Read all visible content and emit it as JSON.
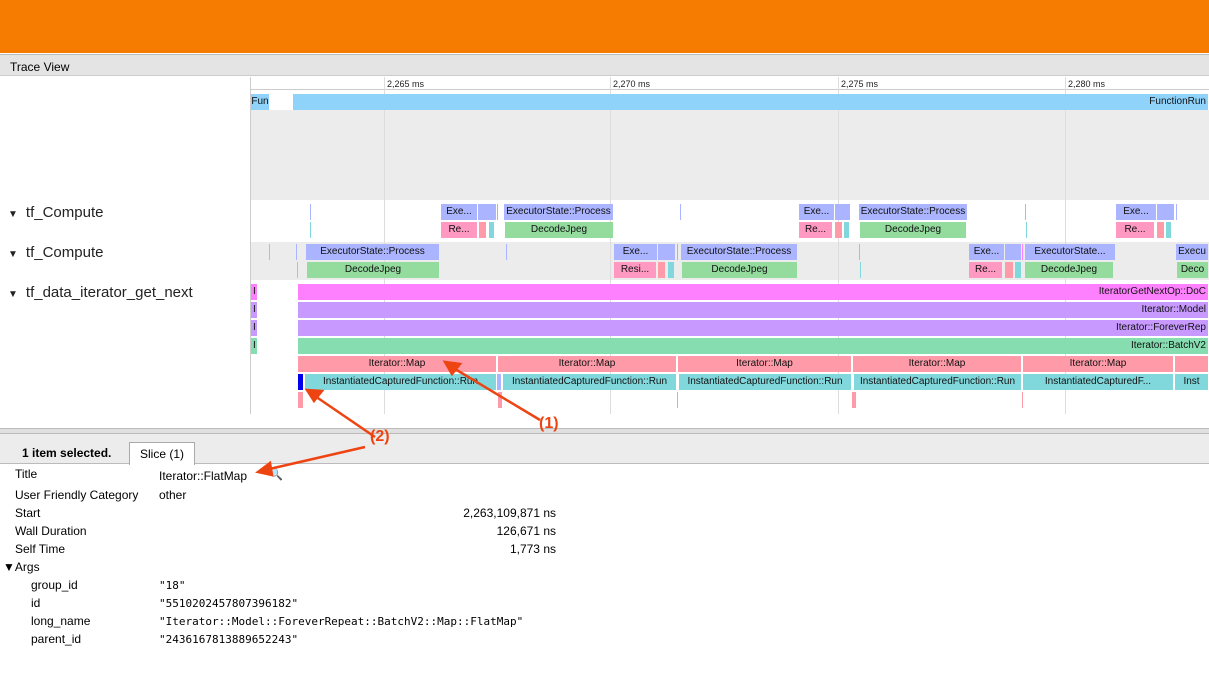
{
  "window": {
    "title": "Trace View"
  },
  "timeline": {
    "ticks": [
      "2,265 ms",
      "2,270 ms",
      "2,275 ms",
      "2,280 ms"
    ]
  },
  "tracks": [
    {
      "label": "tf_Compute",
      "expanded": true
    },
    {
      "label": "tf_Compute",
      "expanded": true
    },
    {
      "label": "tf_data_iterator_get_next",
      "expanded": true
    }
  ],
  "slice_labels": {
    "fun": "Fun",
    "function_run": "FunctionRun",
    "exe": "Exe...",
    "process": "ExecutorState::Process",
    "process_short": "ExecutorState...",
    "execu": "Execu",
    "re": "Re...",
    "resi": "Resi...",
    "decode": "DecodeJpeg",
    "deco": "Deco",
    "i": "I",
    "getnext": "IteratorGetNextOp::DoC",
    "model": "Iterator::Model",
    "forever": "Iterator::ForeverRep",
    "batch": "Iterator::BatchV2",
    "map": "Iterator::Map",
    "icf": "InstantiatedCapturedFunction::Run",
    "icf_short": "InstantiatedCapturedF...",
    "inst": "Inst"
  },
  "annotations": [
    "(1)",
    "(2)"
  ],
  "selection": {
    "count_label": "1 item selected.",
    "tab": "Slice (1)"
  },
  "details": {
    "title_label": "Title",
    "title": "Iterator::FlatMap",
    "search_icon": "magnifier-icon",
    "category_label": "User Friendly Category",
    "category": "other",
    "start_label": "Start",
    "start": "2,263,109,871 ns",
    "wall_label": "Wall Duration",
    "wall": "126,671 ns",
    "self_label": "Self Time",
    "self": "1,773 ns",
    "args_label": "Args",
    "args": [
      {
        "k": "group_id",
        "v": "\"18\""
      },
      {
        "k": "id",
        "v": "\"5510202457807396182\""
      },
      {
        "k": "long_name",
        "v": "\"Iterator::Model::ForeverRepeat::BatchV2::Map::FlatMap\""
      },
      {
        "k": "parent_id",
        "v": "\"2436167813889652243\""
      }
    ]
  },
  "colors": {
    "header": "#f57c00",
    "exec": "#aab4ff",
    "decode": "#93dc9e",
    "resize": "#ff99c2",
    "map": "#ff9aa8",
    "icf": "#80d8dc",
    "getnext": "#ff80ff",
    "model": "#c899ff",
    "batch": "#86ddb0",
    "selected": "#0000ee",
    "annotation": "#ee4411"
  }
}
